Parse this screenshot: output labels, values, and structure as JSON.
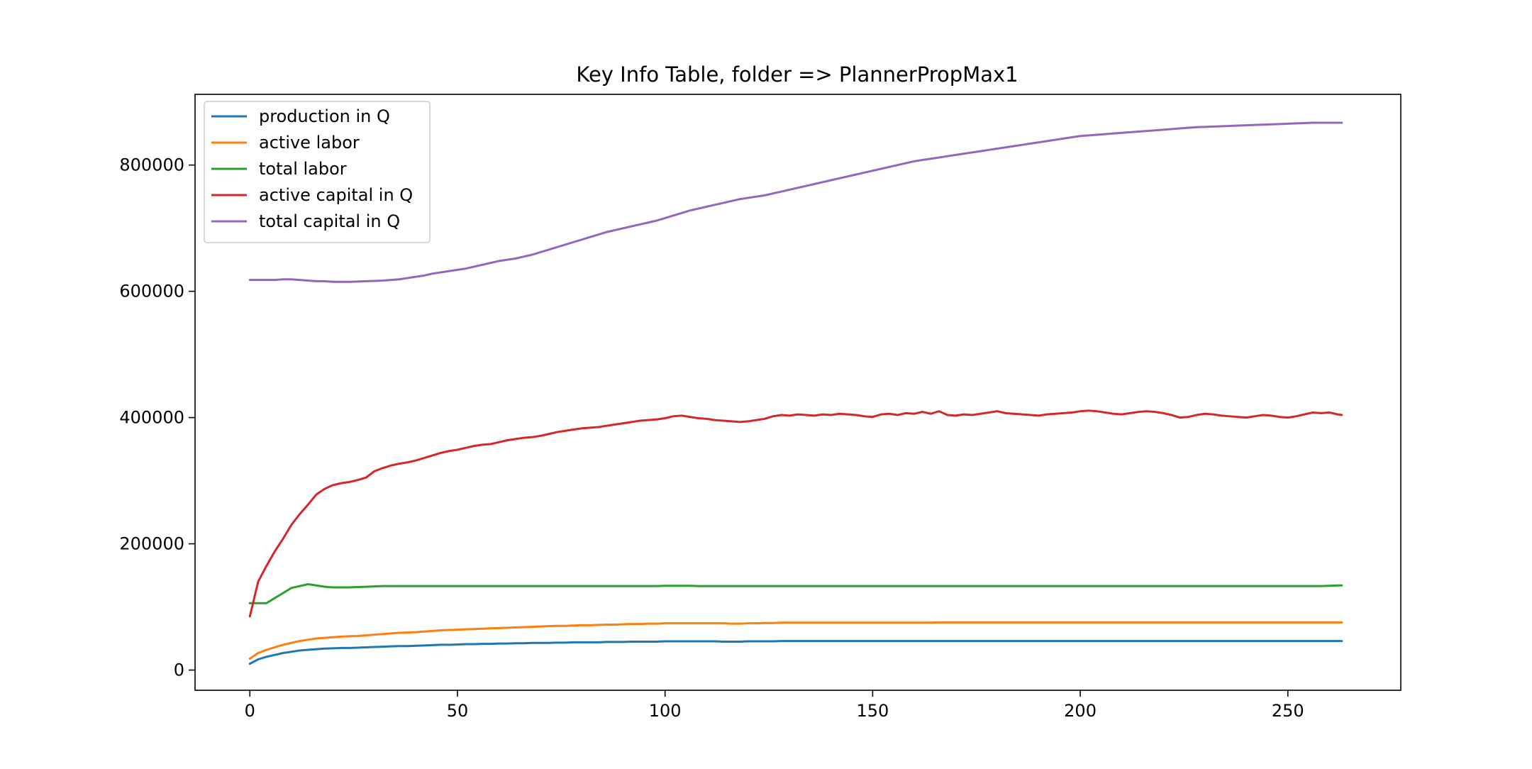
{
  "chart_data": {
    "type": "line",
    "title": "Key Info Table, folder => PlannerPropMax1",
    "xlabel": "",
    "ylabel": "",
    "xlim": [
      -13.2,
      277.2
    ],
    "ylim": [
      -32000,
      912000
    ],
    "xticks": [
      0,
      50,
      100,
      150,
      200,
      250
    ],
    "xtick_labels": [
      "0",
      "50",
      "100",
      "150",
      "200",
      "250"
    ],
    "yticks": [
      0,
      200000,
      400000,
      600000,
      800000
    ],
    "ytick_labels": [
      "0",
      "200000",
      "400000",
      "600000",
      "800000"
    ],
    "grid": false,
    "legend_position": "top-left",
    "x": [
      0,
      2,
      4,
      6,
      8,
      10,
      12,
      14,
      16,
      18,
      20,
      22,
      24,
      26,
      28,
      30,
      32,
      34,
      36,
      38,
      40,
      42,
      44,
      46,
      48,
      50,
      52,
      54,
      56,
      58,
      60,
      62,
      64,
      66,
      68,
      70,
      72,
      74,
      76,
      78,
      80,
      82,
      84,
      86,
      88,
      90,
      92,
      94,
      96,
      98,
      100,
      102,
      104,
      106,
      108,
      110,
      112,
      114,
      116,
      118,
      120,
      122,
      124,
      126,
      128,
      130,
      132,
      134,
      136,
      138,
      140,
      142,
      144,
      146,
      148,
      150,
      152,
      154,
      156,
      158,
      160,
      162,
      164,
      166,
      168,
      170,
      172,
      174,
      176,
      178,
      180,
      182,
      184,
      186,
      188,
      190,
      192,
      194,
      196,
      198,
      200,
      202,
      204,
      206,
      208,
      210,
      212,
      214,
      216,
      218,
      220,
      222,
      224,
      226,
      228,
      230,
      232,
      234,
      236,
      238,
      240,
      242,
      244,
      246,
      248,
      250,
      252,
      254,
      256,
      258,
      260,
      262,
      263
    ],
    "series": [
      {
        "name": "production in Q",
        "color": "#1f77b4",
        "values": [
          10000,
          17000,
          21000,
          24000,
          27000,
          29000,
          31000,
          32000,
          33000,
          34000,
          34500,
          35000,
          35000,
          35500,
          36000,
          36500,
          37000,
          37500,
          38000,
          38000,
          38500,
          39000,
          39500,
          40000,
          40000,
          40500,
          41000,
          41000,
          41500,
          41500,
          42000,
          42000,
          42500,
          42500,
          43000,
          43000,
          43000,
          43500,
          43500,
          44000,
          44000,
          44000,
          44000,
          44500,
          44500,
          44500,
          45000,
          45000,
          45000,
          45000,
          45500,
          45500,
          45500,
          45500,
          45500,
          45500,
          45500,
          45000,
          45000,
          45000,
          45500,
          45500,
          45500,
          45500,
          46000,
          46000,
          46000,
          46000,
          46000,
          46000,
          46000,
          46000,
          46000,
          46000,
          46000,
          46000,
          46000,
          46000,
          46000,
          46000,
          46000,
          46000,
          46000,
          46000,
          46000,
          46000,
          46000,
          46000,
          46000,
          46000,
          46000,
          46000,
          46000,
          46000,
          46000,
          46000,
          46000,
          46000,
          46000,
          46000,
          46000,
          46000,
          46000,
          46000,
          46000,
          46000,
          46000,
          46000,
          46000,
          46000,
          46000,
          46000,
          46000,
          46000,
          46000,
          46000,
          46000,
          46000,
          46000,
          46000,
          46000,
          46000,
          46000,
          46000,
          46000,
          46000,
          46000,
          46000,
          46000,
          46000,
          46000,
          46000,
          46000
        ]
      },
      {
        "name": "active labor",
        "color": "#ff7f0e",
        "values": [
          18000,
          27000,
          32000,
          36000,
          40000,
          43000,
          46000,
          48000,
          50000,
          51000,
          52000,
          53000,
          53500,
          54000,
          55000,
          56000,
          57000,
          58000,
          59000,
          59500,
          60000,
          61000,
          62000,
          63000,
          63500,
          64000,
          64500,
          65000,
          65500,
          66000,
          66500,
          67000,
          67500,
          68000,
          68500,
          69000,
          69500,
          70000,
          70000,
          70500,
          71000,
          71000,
          71500,
          72000,
          72000,
          72500,
          73000,
          73000,
          73500,
          73500,
          74000,
          74000,
          74000,
          74000,
          74000,
          74000,
          74000,
          74000,
          73500,
          73500,
          74000,
          74000,
          74500,
          74500,
          75000,
          75000,
          75000,
          75000,
          75000,
          75000,
          75000,
          75000,
          75000,
          75000,
          75000,
          75000,
          75000,
          75000,
          75000,
          75000,
          75000,
          75000,
          75000,
          75500,
          75500,
          75500,
          75500,
          75500,
          75500,
          75500,
          75500,
          75500,
          75500,
          75500,
          75500,
          75500,
          75500,
          75500,
          75500,
          75500,
          75500,
          75500,
          75500,
          75500,
          75500,
          75500,
          75500,
          75500,
          75500,
          75500,
          75500,
          75500,
          75500,
          75500,
          75500,
          75500,
          75500,
          75500,
          75500,
          75500,
          75500,
          75500,
          75500,
          75500,
          75500,
          75500,
          75500,
          75500,
          75500,
          75500,
          75500,
          75500,
          75500
        ]
      },
      {
        "name": "total labor",
        "color": "#2ca02c",
        "values": [
          106000,
          106000,
          106000,
          114000,
          122000,
          130000,
          133000,
          136000,
          134000,
          132000,
          131000,
          131000,
          131000,
          131500,
          132000,
          132500,
          133000,
          133000,
          133000,
          133000,
          133000,
          133000,
          133000,
          133000,
          133000,
          133000,
          133000,
          133000,
          133000,
          133000,
          133000,
          133000,
          133000,
          133000,
          133000,
          133000,
          133000,
          133000,
          133000,
          133000,
          133000,
          133000,
          133000,
          133000,
          133000,
          133000,
          133000,
          133000,
          133000,
          133000,
          133500,
          133500,
          133500,
          133500,
          133000,
          133000,
          133000,
          133000,
          133000,
          133000,
          133000,
          133000,
          133000,
          133000,
          133000,
          133000,
          133000,
          133000,
          133000,
          133000,
          133000,
          133000,
          133000,
          133000,
          133000,
          133000,
          133000,
          133000,
          133000,
          133000,
          133000,
          133000,
          133000,
          133000,
          133000,
          133000,
          133000,
          133000,
          133000,
          133000,
          133000,
          133000,
          133000,
          133000,
          133000,
          133000,
          133000,
          133000,
          133000,
          133000,
          133000,
          133000,
          133000,
          133000,
          133000,
          133000,
          133000,
          133000,
          133000,
          133000,
          133000,
          133000,
          133000,
          133000,
          133000,
          133000,
          133000,
          133000,
          133000,
          133000,
          133000,
          133000,
          133000,
          133000,
          133000,
          133000,
          133000,
          133000,
          133000,
          133000,
          133500,
          134000,
          134000
        ]
      },
      {
        "name": "active capital in Q",
        "color": "#d62728",
        "values": [
          85000,
          140000,
          165000,
          188000,
          208000,
          230000,
          247000,
          262000,
          278000,
          287000,
          293000,
          296000,
          298000,
          301000,
          305000,
          315000,
          320000,
          324000,
          327000,
          329000,
          332000,
          336000,
          340000,
          344000,
          347000,
          349000,
          352000,
          355000,
          357000,
          358000,
          361000,
          364000,
          366000,
          368000,
          369000,
          371000,
          374000,
          377000,
          379000,
          381000,
          383000,
          384000,
          385000,
          387000,
          389000,
          391000,
          393000,
          395000,
          396000,
          397000,
          399000,
          402000,
          403000,
          401000,
          399000,
          398000,
          396000,
          395000,
          394000,
          393000,
          394000,
          396000,
          398000,
          402000,
          404000,
          403000,
          405000,
          404000,
          403000,
          405000,
          404000,
          406000,
          405000,
          404000,
          402000,
          401000,
          405000,
          406000,
          404000,
          407000,
          406000,
          409000,
          406000,
          410000,
          404000,
          403000,
          405000,
          404000,
          406000,
          408000,
          410000,
          407000,
          406000,
          405000,
          404000,
          403000,
          405000,
          406000,
          407000,
          408000,
          410000,
          411000,
          410000,
          408000,
          406000,
          405000,
          407000,
          409000,
          410000,
          409000,
          407000,
          404000,
          400000,
          401000,
          404000,
          406000,
          405000,
          403000,
          402000,
          401000,
          400000,
          402000,
          404000,
          403000,
          401000,
          400000,
          402000,
          405000,
          408000,
          407000,
          408000,
          405000,
          404000
        ]
      },
      {
        "name": "total capital in Q",
        "color": "#9467bd",
        "values": [
          618000,
          618000,
          618000,
          618000,
          619000,
          619000,
          618000,
          617000,
          616000,
          616000,
          615000,
          615000,
          615000,
          615500,
          616000,
          616500,
          617000,
          618000,
          619000,
          621000,
          623000,
          625000,
          628000,
          630000,
          632000,
          634000,
          636000,
          639000,
          642000,
          645000,
          648000,
          650000,
          652000,
          655000,
          658000,
          662000,
          666000,
          670000,
          674000,
          678000,
          682000,
          686000,
          690000,
          694000,
          697000,
          700000,
          703000,
          706000,
          709000,
          712000,
          716000,
          720000,
          724000,
          728000,
          731000,
          734000,
          737000,
          740000,
          743000,
          746000,
          748000,
          750000,
          752000,
          755000,
          758000,
          761000,
          764000,
          767000,
          770000,
          773000,
          776000,
          779000,
          782000,
          785000,
          788000,
          791000,
          794000,
          797000,
          800000,
          803000,
          806000,
          808000,
          810000,
          812000,
          814000,
          816000,
          818000,
          820000,
          822000,
          824000,
          826000,
          828000,
          830000,
          832000,
          834000,
          836000,
          838000,
          840000,
          842000,
          844000,
          846000,
          847000,
          848000,
          849000,
          850000,
          851000,
          852000,
          853000,
          854000,
          855000,
          856000,
          857000,
          858000,
          859000,
          860000,
          860500,
          861000,
          861500,
          862000,
          862500,
          863000,
          863500,
          864000,
          864500,
          865000,
          865500,
          866000,
          866500,
          867000,
          867000,
          867000,
          867000,
          867000
        ]
      }
    ]
  }
}
